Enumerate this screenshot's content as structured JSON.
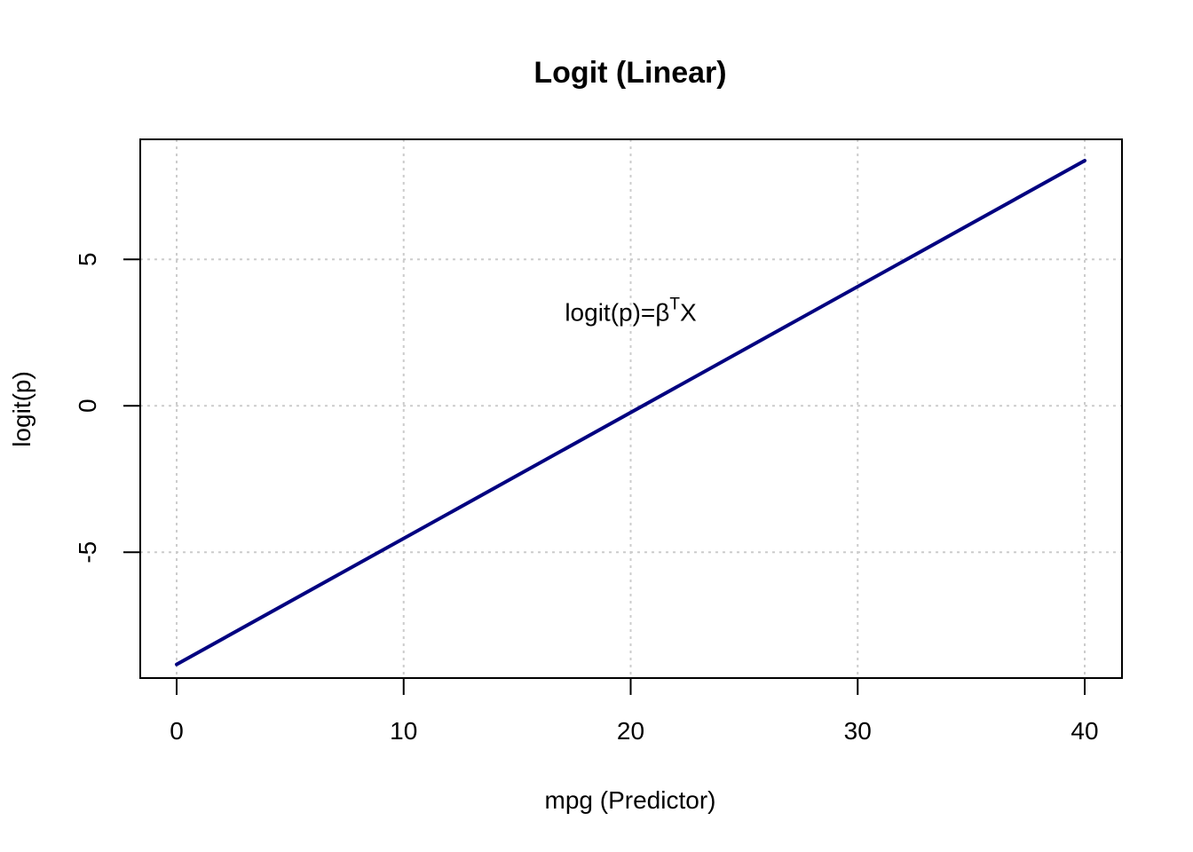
{
  "chart_data": {
    "type": "line",
    "title": "Logit (Linear)",
    "xlabel": "mpg (Predictor)",
    "ylabel": "logit(p)",
    "xlim": [
      0,
      40
    ],
    "ylim": [
      -8.6,
      8.4
    ],
    "x_ticks": [
      0,
      10,
      20,
      30,
      40
    ],
    "x_tick_labels": [
      "0",
      "10",
      "20",
      "30",
      "40"
    ],
    "y_ticks": [
      -5,
      0,
      5
    ],
    "y_tick_labels": [
      "-5",
      "0",
      "5"
    ],
    "grid": true,
    "series": [
      {
        "x": [
          0,
          40
        ],
        "y": [
          -8.83,
          8.37
        ],
        "color": "#000080"
      }
    ],
    "annotation": {
      "text": "logit(p)=β",
      "superscript": "T",
      "suffix": "X",
      "x": 20,
      "y": 2.9
    }
  }
}
